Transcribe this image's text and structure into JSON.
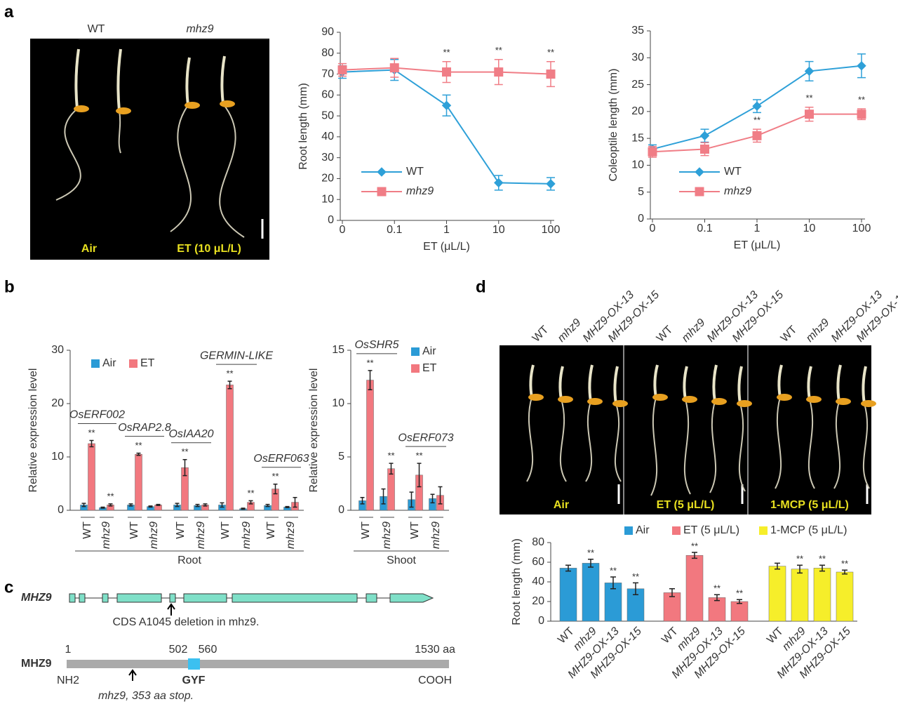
{
  "figure": {
    "panel_labels": [
      "a",
      "b",
      "c",
      "d"
    ]
  },
  "photo_a": {
    "conditions": [
      "Air",
      "ET (10 μL/L)"
    ]
  },
  "chart_data": [
    {
      "type": "line",
      "ylabel": "Root length (mm)",
      "xlabel": "ET (μL/L)",
      "categories": [
        "0",
        "0.1",
        "1",
        "10",
        "100"
      ],
      "ylim": [
        0,
        90
      ],
      "yticks": [
        0,
        10,
        20,
        30,
        40,
        50,
        60,
        70,
        80,
        90
      ],
      "series": [
        {
          "name": "WT",
          "color": "#2ea0d8",
          "marker": "diamond",
          "values": [
            71,
            72,
            55,
            18,
            17.5
          ],
          "errors": [
            3,
            5,
            5,
            3.5,
            3
          ]
        },
        {
          "name": "mhz9",
          "color": "#f07d86",
          "marker": "square",
          "name_style": "italic",
          "values": [
            72,
            73,
            71,
            71,
            70
          ],
          "errors": [
            3,
            4.5,
            5,
            6,
            6
          ],
          "significance": [
            null,
            null,
            "**",
            "**",
            "**"
          ]
        }
      ]
    },
    {
      "type": "line",
      "ylabel": "Coleoptile length (mm)",
      "xlabel": "ET (μL/L)",
      "categories": [
        "0",
        "0.1",
        "1",
        "10",
        "100"
      ],
      "ylim": [
        0,
        35
      ],
      "yticks": [
        0,
        5,
        10,
        15,
        20,
        25,
        30,
        35
      ],
      "series": [
        {
          "name": "WT",
          "color": "#2ea0d8",
          "marker": "diamond",
          "values": [
            13,
            15.5,
            21,
            27.5,
            28.5
          ],
          "errors": [
            0.8,
            1.2,
            1.2,
            1.8,
            2.2
          ]
        },
        {
          "name": "mhz9",
          "color": "#f07d86",
          "marker": "square",
          "name_style": "italic",
          "values": [
            12.5,
            13,
            15.5,
            19.5,
            19.5
          ],
          "errors": [
            1,
            1.2,
            1.2,
            1.3,
            1
          ],
          "significance": [
            null,
            null,
            "**",
            "**",
            "**"
          ]
        }
      ]
    },
    {
      "type": "grouped-bar",
      "ylabel": "Relative expression level",
      "group_label": "Root",
      "categories": [
        "WT",
        "mhz9",
        "WT",
        "mhz9",
        "WT",
        "mhz9",
        "WT",
        "mhz9",
        "WT",
        "mhz9"
      ],
      "gene_labels": [
        "OsERF002",
        "OsRAP2.8",
        "OsIAA20",
        "GERMIN-LIKE",
        "OsERF063"
      ],
      "ylim": [
        0,
        30
      ],
      "yticks": [
        0,
        10,
        20,
        30
      ],
      "series": [
        {
          "name": "Air",
          "color": "#2b9bd6",
          "values": [
            1,
            0.5,
            1,
            0.7,
            1,
            0.9,
            1,
            0.3,
            0.9,
            0.6
          ],
          "errors": [
            0.3,
            0.1,
            0.2,
            0.1,
            0.3,
            0.2,
            0.4,
            0.1,
            0.2,
            0.1
          ]
        },
        {
          "name": "ET",
          "color": "#f2787f",
          "values": [
            12.5,
            1,
            10.5,
            1,
            8,
            1,
            23.5,
            1.5,
            4,
            1.5
          ],
          "errors": [
            0.6,
            0.2,
            0.2,
            0.1,
            1.5,
            0.2,
            0.7,
            0.3,
            0.9,
            0.9
          ],
          "significance": [
            "**",
            "**",
            "**",
            null,
            "**",
            null,
            "**",
            "**",
            "**",
            null
          ]
        }
      ]
    },
    {
      "type": "grouped-bar",
      "ylabel": "Relative expression level",
      "group_label": "Shoot",
      "categories": [
        "WT",
        "mhz9",
        "WT",
        "mhz9"
      ],
      "gene_labels": [
        "OsSHR5",
        "OsERF073"
      ],
      "ylim": [
        0,
        15
      ],
      "yticks": [
        0,
        5,
        10,
        15
      ],
      "series": [
        {
          "name": "Air",
          "color": "#2b9bd6",
          "values": [
            0.9,
            1.3,
            1,
            1.1
          ],
          "errors": [
            0.3,
            0.7,
            0.7,
            0.4
          ]
        },
        {
          "name": "ET",
          "color": "#f2787f",
          "values": [
            12.2,
            3.9,
            3.3,
            1.4
          ],
          "errors": [
            0.9,
            0.5,
            1.1,
            0.8
          ],
          "significance": [
            "**",
            "**",
            "**",
            null
          ]
        }
      ]
    },
    {
      "type": "clustered-bar",
      "ylabel": "Root length (mm)",
      "categories": [
        "WT",
        "mhz9",
        "MHZ9-OX-13",
        "MHZ9-OX-15"
      ],
      "ylim": [
        0,
        80
      ],
      "yticks": [
        0,
        20,
        40,
        60,
        80
      ],
      "series": [
        {
          "name": "Air",
          "color": "#2b9bd6",
          "values": [
            54,
            59,
            39,
            33
          ],
          "errors": [
            3,
            4,
            6,
            6
          ],
          "significance": [
            null,
            "**",
            "**",
            "**"
          ]
        },
        {
          "name": "ET (5 μL/L)",
          "color": "#f2787f",
          "values": [
            29,
            67,
            24,
            20
          ],
          "errors": [
            4,
            3,
            3,
            2
          ],
          "significance": [
            null,
            "**",
            "**",
            "**"
          ]
        },
        {
          "name": "1-MCP (5 μL/L)",
          "color": "#f6ee2a",
          "values": [
            56,
            53,
            54,
            50
          ],
          "errors": [
            3,
            4,
            3,
            2
          ],
          "significance": [
            null,
            "**",
            "**",
            "**"
          ]
        }
      ]
    }
  ],
  "gene_diagram": {
    "gene": "MHZ9",
    "deletion_note": "CDS A1045 deletion in mhz9.",
    "protein": "MHZ9",
    "positions": [
      "1",
      "502",
      "560",
      "1530 aa"
    ],
    "n_term": "NH2",
    "c_term": "COOH",
    "domain": "GYF",
    "mutation_note": "mhz9, 353 aa stop."
  }
}
